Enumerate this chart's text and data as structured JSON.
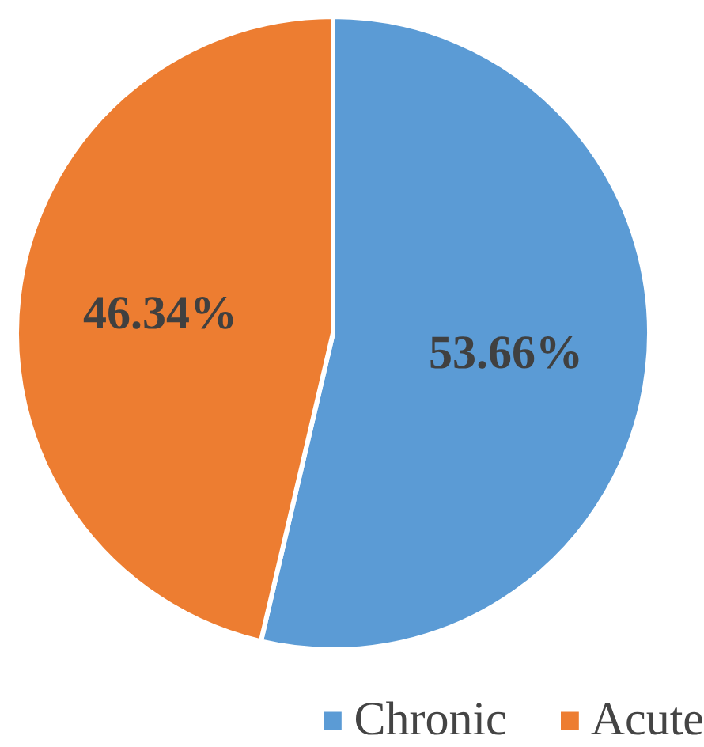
{
  "chart_data": {
    "type": "pie",
    "categories": [
      "Chronic",
      "Acute"
    ],
    "values": [
      53.66,
      46.34
    ],
    "colors": [
      "#5b9bd5",
      "#ed7d31"
    ],
    "value_labels": [
      "53.66%",
      "46.34%"
    ],
    "legend": "bottom"
  }
}
